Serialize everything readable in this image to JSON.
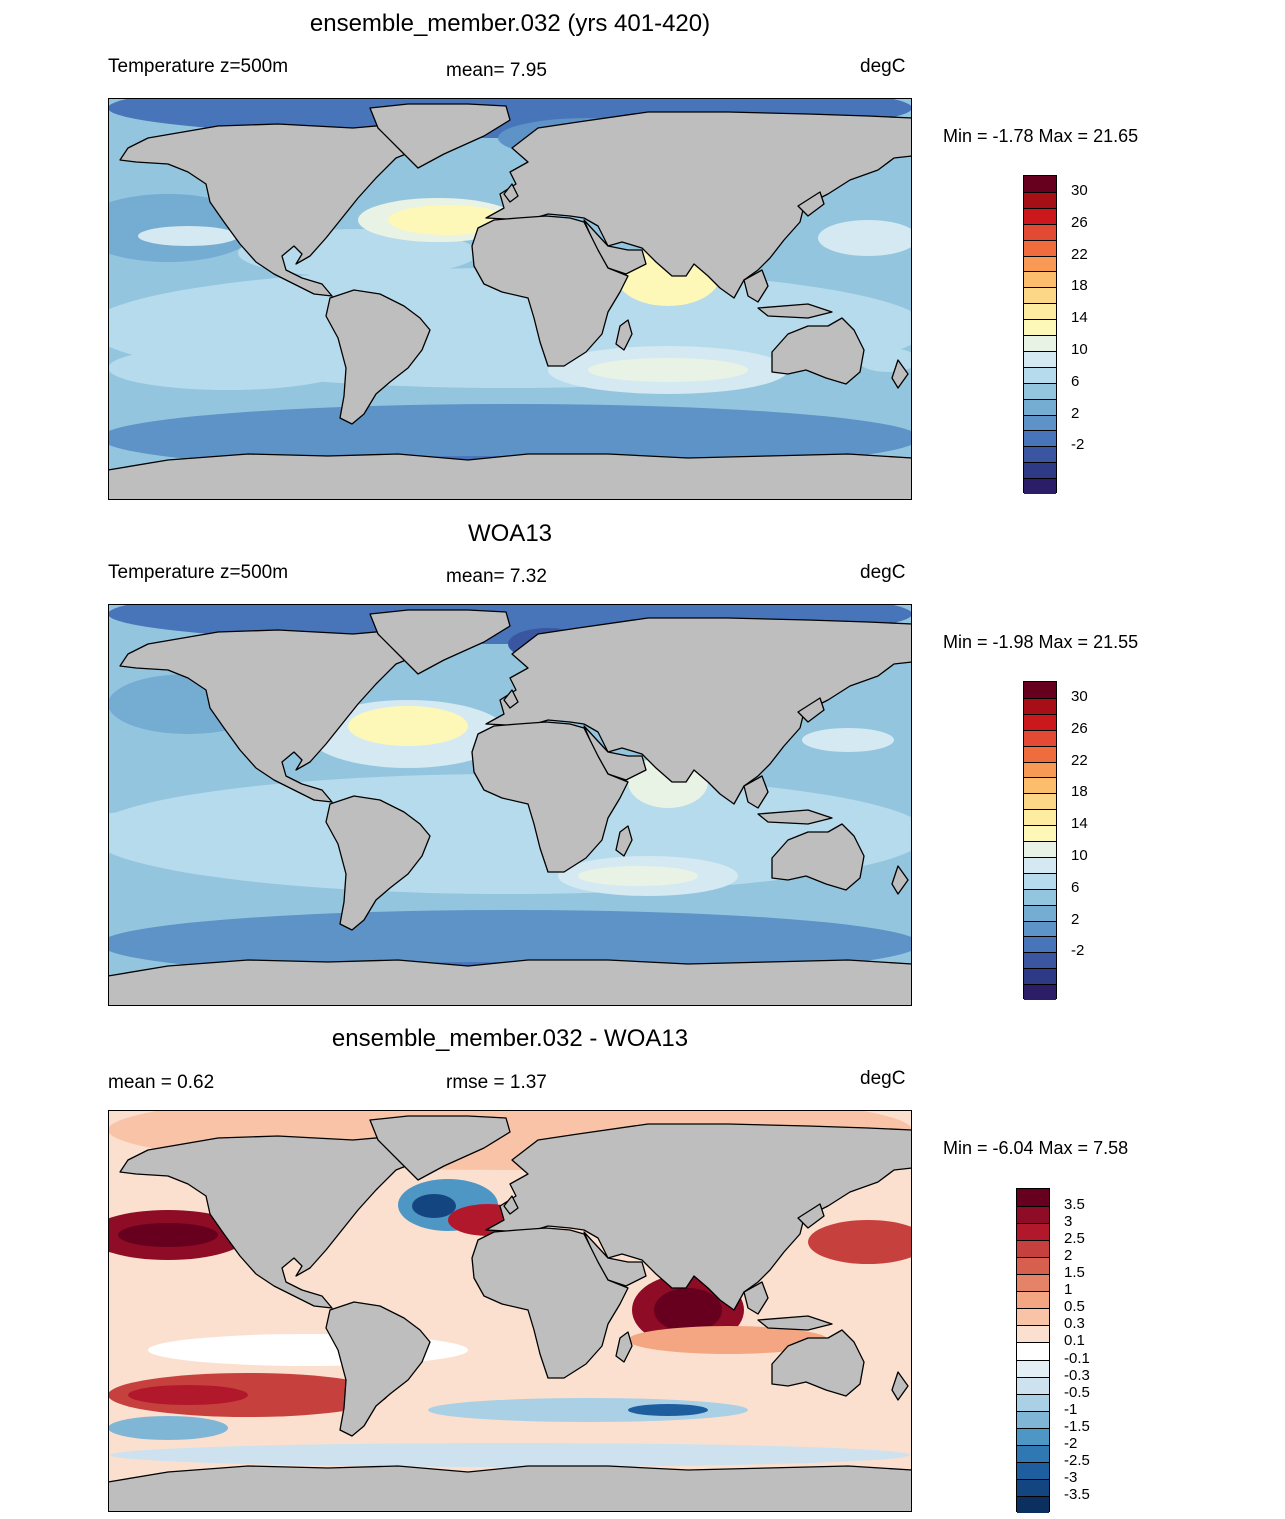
{
  "panels": [
    {
      "title": "ensemble_member.032 (yrs 401-420)",
      "left_label": "Temperature z=500m",
      "mid_label": "mean=   7.95",
      "units": "degC",
      "range_text": "Min =  -1.78 Max =  21.65",
      "kind": "model"
    },
    {
      "title": "WOA13",
      "left_label": "Temperature z=500m",
      "mid_label": "mean=   7.32",
      "units": "degC",
      "range_text": "Min =  -1.98 Max =  21.55",
      "kind": "obs"
    },
    {
      "title": "ensemble_member.032 - WOA13",
      "left_label": "mean =   0.62",
      "mid_label": "rmse =   1.37",
      "units": "degC",
      "range_text": "Min =  -6.04 Max =   7.58",
      "kind": "diff"
    }
  ],
  "temp_colorbar": {
    "labels": [
      "30",
      "26",
      "22",
      "18",
      "14",
      "10",
      "6",
      "2",
      "-2"
    ],
    "colors": [
      "#67001f",
      "#a50f15",
      "#cb181d",
      "#e34a33",
      "#f16c3c",
      "#f89a55",
      "#fcbd6c",
      "#fdd788",
      "#feeda0",
      "#fdf7b8",
      "#e8f3e6",
      "#d4e9f1",
      "#b6dbec",
      "#93c5df",
      "#74acd2",
      "#5d93c6",
      "#4874b9",
      "#3a56a0",
      "#2e3a86",
      "#2b1e66"
    ]
  },
  "diff_colorbar": {
    "labels": [
      "3.5",
      "3",
      "2.5",
      "2",
      "1.5",
      "1",
      "0.5",
      "0.3",
      "0.1",
      "-0.1",
      "-0.3",
      "-0.5",
      "-1",
      "-1.5",
      "-2",
      "-2.5",
      "-3",
      "-3.5"
    ],
    "colors": [
      "#67001f",
      "#8e0c25",
      "#b2182b",
      "#c6413e",
      "#d6604d",
      "#e58368",
      "#f4a582",
      "#f8c3a6",
      "#fbe0cf",
      "#ffffff",
      "#e4eef5",
      "#cde2ee",
      "#a9d0e5",
      "#7fb6d6",
      "#4e97c5",
      "#2f78b4",
      "#1e5e9f",
      "#134680",
      "#0b2f5e"
    ]
  },
  "map_colors": {
    "land": "#bebebe",
    "coast": "#000000"
  }
}
